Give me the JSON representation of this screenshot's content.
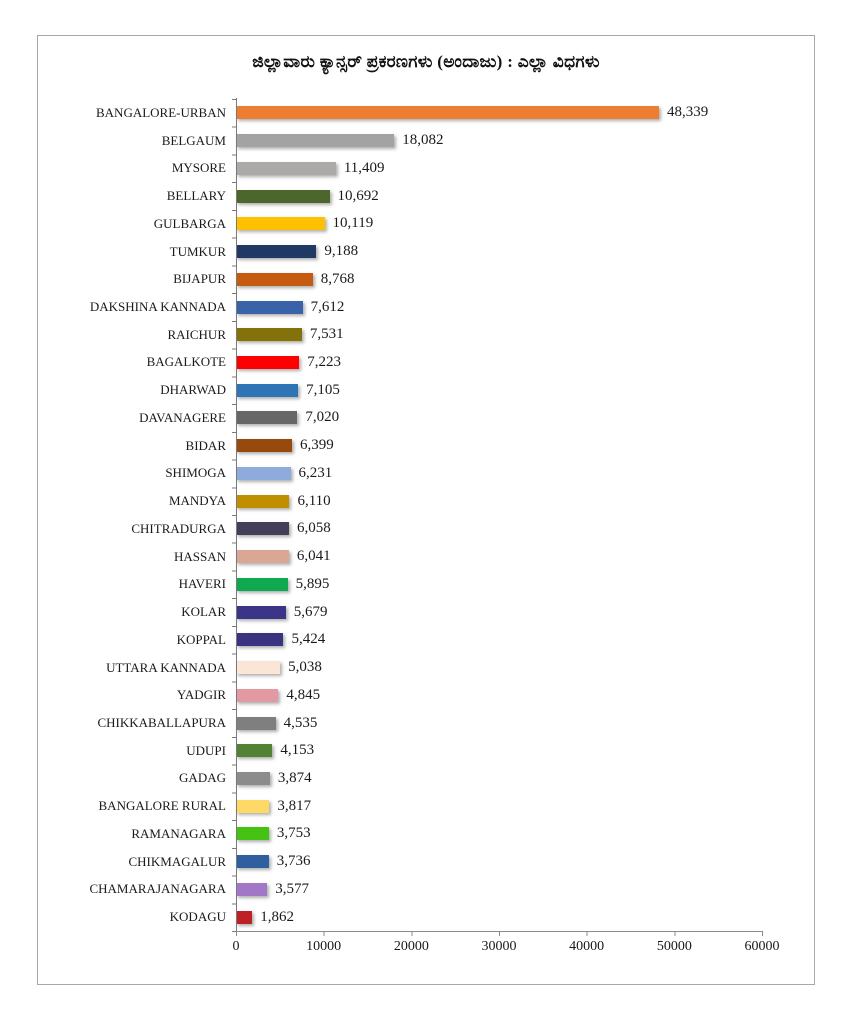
{
  "chart_data": {
    "type": "bar",
    "orientation": "horizontal",
    "title": "ಜಿಲ್ಲಾವಾರು ಕ್ಯಾನ್ಸರ್ ಪ್ರಕರಣಗಳು (ಅಂದಾಜು) : ಎಲ್ಲಾ ವಿಧಗಳು",
    "xlabel": "",
    "ylabel": "",
    "xlim": [
      0,
      60000
    ],
    "x_tick_labels": [
      "0",
      "10000",
      "20000",
      "30000",
      "40000",
      "50000",
      "60000"
    ],
    "grid": false,
    "legend": "none",
    "categories": [
      "BANGALORE-URBAN",
      "BELGAUM",
      "MYSORE",
      "BELLARY",
      "GULBARGA",
      "TUMKUR",
      "BIJAPUR",
      "DAKSHINA KANNADA",
      "RAICHUR",
      "BAGALKOTE",
      "DHARWAD",
      "DAVANAGERE",
      "BIDAR",
      "SHIMOGA",
      "MANDYA",
      "CHITRADURGA",
      "HASSAN",
      "HAVERI",
      "KOLAR",
      "KOPPAL",
      "UTTARA KANNADA",
      "YADGIR",
      "CHIKKABALLAPURA",
      "UDUPI",
      "GADAG",
      "BANGALORE RURAL",
      "RAMANAGARA",
      "CHIKMAGALUR",
      "CHAMARAJANAGARA",
      "KODAGU"
    ],
    "values": [
      48339,
      18082,
      11409,
      10692,
      10119,
      9188,
      8768,
      7612,
      7531,
      7223,
      7105,
      7020,
      6399,
      6231,
      6110,
      6058,
      6041,
      5895,
      5679,
      5424,
      5038,
      4845,
      4535,
      4153,
      3874,
      3817,
      3753,
      3736,
      3577,
      1862
    ],
    "value_labels": [
      "48,339",
      "18,082",
      "11,409",
      "10,692",
      "10,119",
      "9,188",
      "8,768",
      "7,612",
      "7,531",
      "7,223",
      "7,105",
      "7,020",
      "6,399",
      "6,231",
      "6,110",
      "6,058",
      "6,041",
      "5,895",
      "5,679",
      "5,424",
      "5,038",
      "4,845",
      "4,535",
      "4,153",
      "3,874",
      "3,817",
      "3,753",
      "3,736",
      "3,577",
      "1,862"
    ],
    "bar_colors": [
      "#ED7D31",
      "#A3A3A3",
      "#ACA9A9",
      "#4C662C",
      "#FFC000",
      "#1F3864",
      "#C55A11",
      "#3A62A8",
      "#837109",
      "#FF0000",
      "#2E75B6",
      "#666666",
      "#964A0D",
      "#8FAADC",
      "#BF8F00",
      "#443E59",
      "#DAA795",
      "#0FA950",
      "#3B3587",
      "#3A3480",
      "#FBE5D6",
      "#E299A1",
      "#7F7F7F",
      "#548235",
      "#8C8C8C",
      "#FFD966",
      "#46C214",
      "#2F5F9E",
      "#A277C7",
      "#BF2026"
    ],
    "axis_color": "#7a7a7a",
    "frame_border_color": "#a8a8a8"
  }
}
